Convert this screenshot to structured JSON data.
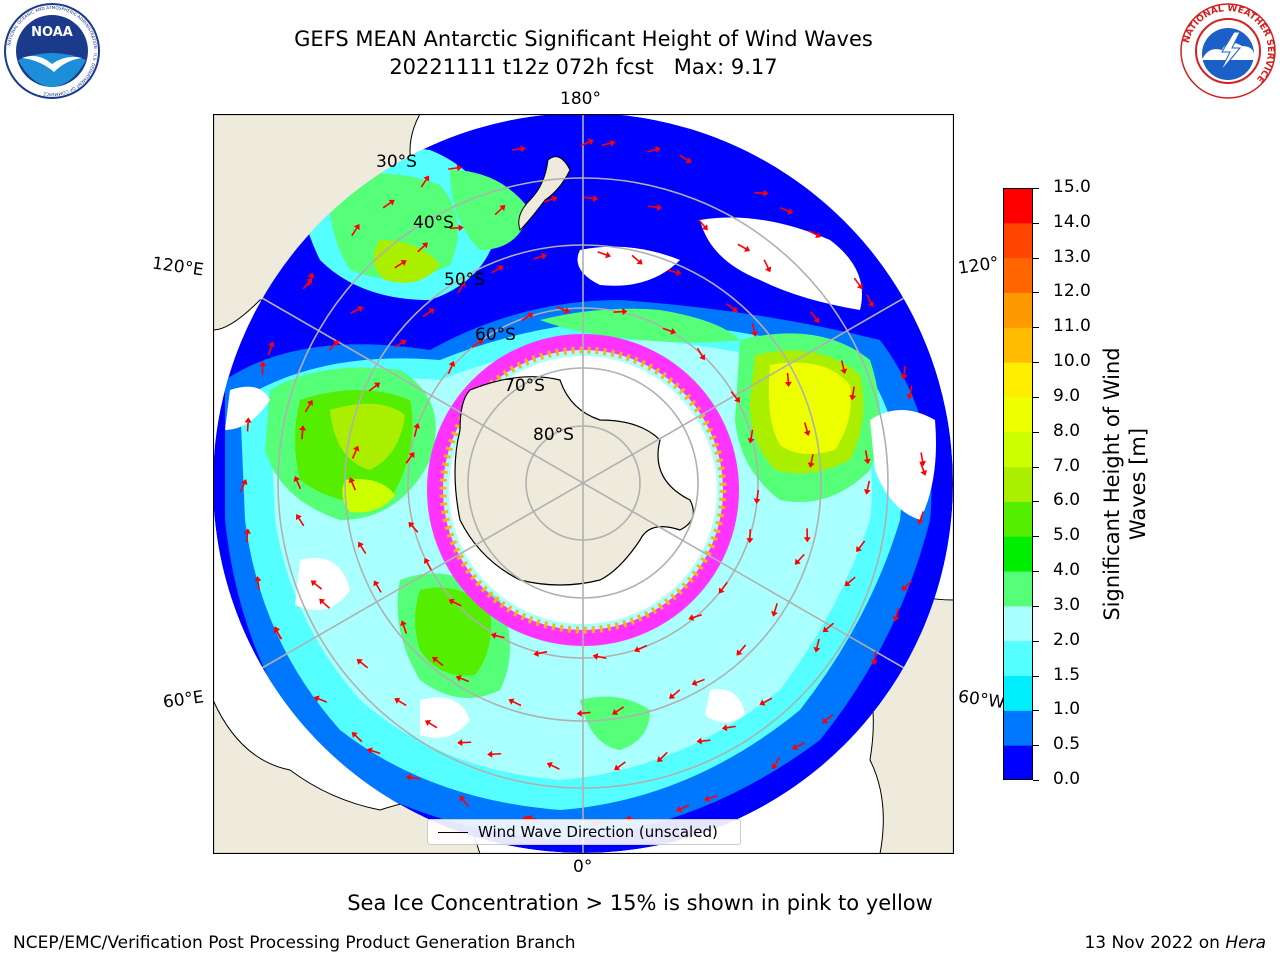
{
  "title": {
    "line1": "GEFS MEAN Antarctic Significant Height of Wind Waves",
    "line2": "20221111 t12z 072h fcst   Max: 9.17"
  },
  "logos": {
    "noaa": {
      "icon": "noaa-logo-icon",
      "text": "NOAA",
      "ring_text": "NATIONAL OCEANIC AND ATMOSPHERIC ADMINISTRATION · U.S. DEPARTMENT OF COMMERCE"
    },
    "nws": {
      "icon": "nws-logo-icon",
      "ring_text": "NATIONAL WEATHER SERVICE"
    }
  },
  "map": {
    "projection": "south-polar-stereographic",
    "longitude_labels": {
      "top": "180°",
      "bottom": "0°",
      "upper_left": "120°E",
      "upper_right": "120°",
      "lower_left": "60°E",
      "lower_right": "60°W"
    },
    "latitude_labels": [
      "30°S",
      "40°S",
      "50°S",
      "60°S",
      "70°S",
      "80°S"
    ],
    "legend_label": "Wind Wave Direction (unscaled)",
    "colors": {
      "land": "#efebdc",
      "ocean_no_data": "#ffffff",
      "arrow": "#ff0000",
      "graticule": "#b0b0b0",
      "ice_low": "#ff33ff",
      "ice_high": "#ffb020"
    }
  },
  "colorbar": {
    "label_line1": "Significant Height of Wind",
    "label_line2": "Waves [m]",
    "ticks": [
      "0.0",
      "0.5",
      "1.0",
      "1.5",
      "2.0",
      "3.0",
      "4.0",
      "5.0",
      "6.0",
      "7.0",
      "8.0",
      "9.0",
      "10.0",
      "11.0",
      "12.0",
      "13.0",
      "14.0",
      "15.0"
    ],
    "colors": [
      "#0000ff",
      "#0077ff",
      "#00eeff",
      "#55ffff",
      "#aaffff",
      "#55ff77",
      "#00ee00",
      "#55ee00",
      "#aaee00",
      "#ccff00",
      "#eeff00",
      "#ffee00",
      "#ffbb00",
      "#ff9900",
      "#ff6600",
      "#ff4400",
      "#ff0000"
    ]
  },
  "ice_note": "Sea Ice Concentration > 15% is shown in pink to yellow",
  "footer": {
    "left": "NCEP/EMC/Verification Post Processing Product Generation Branch",
    "right_prefix": "13 Nov 2022 on ",
    "right_machine": "Hera"
  }
}
